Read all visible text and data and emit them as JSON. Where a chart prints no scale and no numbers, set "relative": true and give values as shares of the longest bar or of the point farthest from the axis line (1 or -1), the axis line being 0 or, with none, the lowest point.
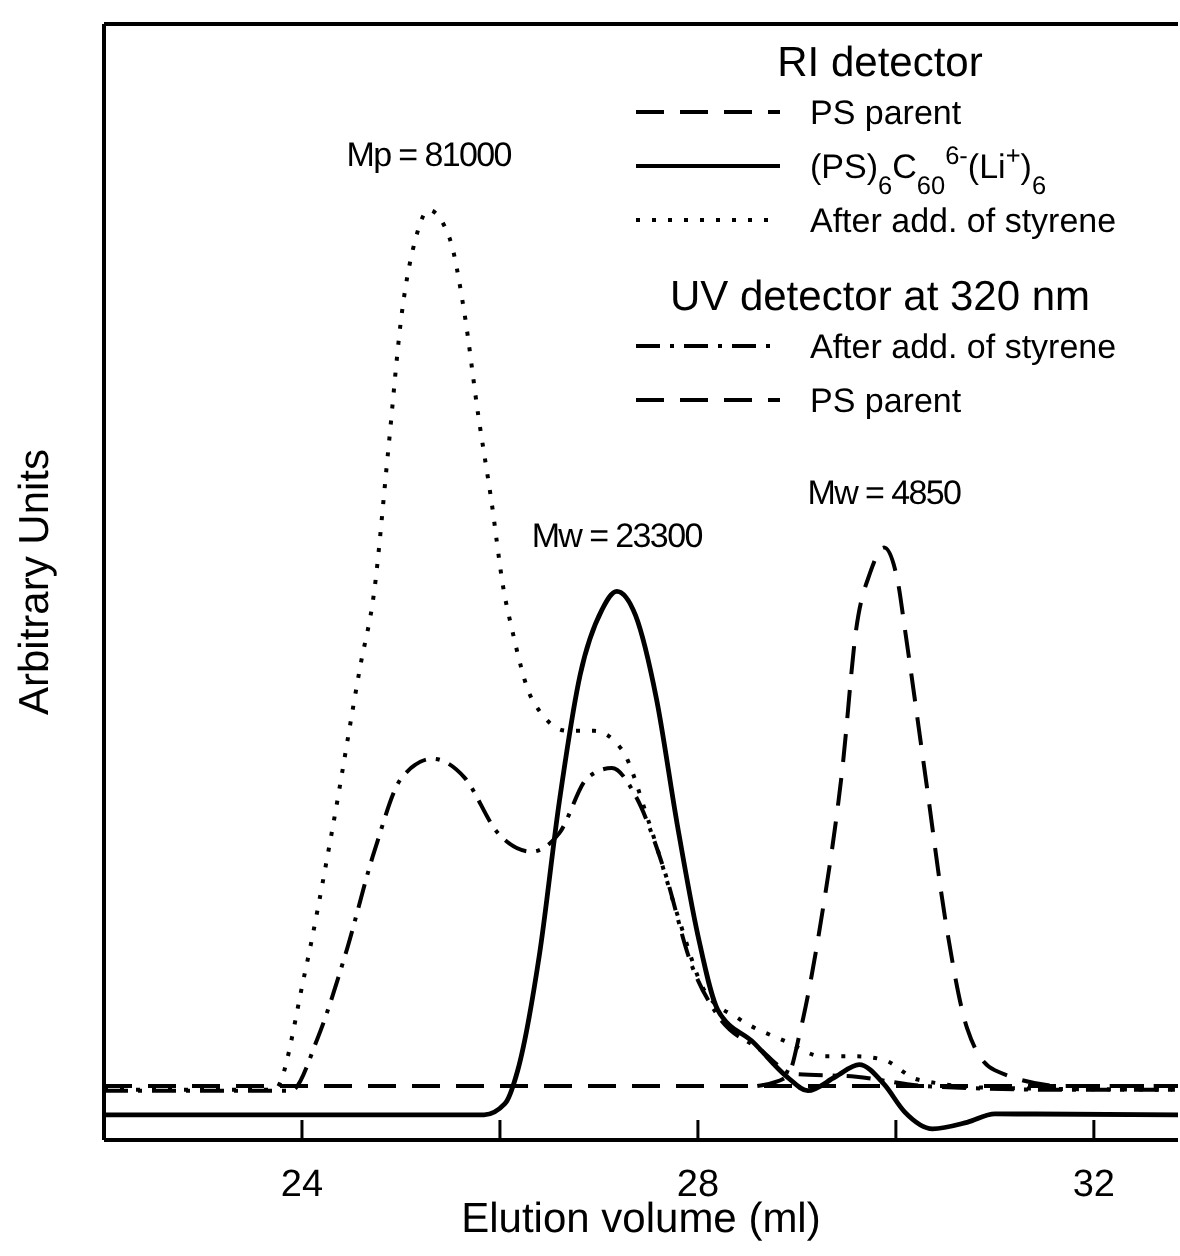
{
  "chart_data": {
    "type": "line",
    "relative": true,
    "xlabel": "Elution volume (ml)",
    "ylabel": "Arbitrary Units",
    "xlim": [
      22,
      32.85
    ],
    "xticks": [
      24,
      {
        "value": 26,
        "label": null
      },
      28,
      {
        "value": 30,
        "label": null
      },
      32
    ],
    "legend": "top right",
    "grid": false,
    "marker": "none",
    "annotations": [
      "RI detector",
      "UV detector at 320 nm",
      {
        "text": "Mp = 81000",
        "x": 25.28,
        "y": 1.0
      },
      {
        "text": "Mw = 23300",
        "x": 27.18,
        "y": 0.59
      },
      {
        "text": "Mw = 4850",
        "x": 29.88,
        "y": 0.637
      }
    ],
    "series": [
      {
        "name": "PS parent",
        "color": "#000000",
        "line_style": "dashed",
        "x": [
          28.6,
          28.9,
          29.04,
          29.25,
          29.46,
          29.6,
          29.74,
          29.88,
          30.02,
          30.09,
          30.3,
          30.51,
          30.72,
          31.0,
          31.7,
          32.85
        ],
        "values": [
          0.058,
          0.068,
          0.12,
          0.24,
          0.4,
          0.55,
          0.61,
          0.637,
          0.6,
          0.55,
          0.39,
          0.23,
          0.12,
          0.075,
          0.058,
          0.058
        ]
      },
      {
        "name": "(PS)$_{6}$C$_{60}$$^{6-}$(Li$^{+}$)$_{6}$",
        "color": "#000000",
        "line_style": "solid",
        "x": [
          22,
          25.84,
          26.05,
          26.18,
          26.4,
          26.6,
          26.81,
          27.03,
          27.18,
          27.37,
          27.58,
          27.79,
          28.0,
          28.2,
          28.56,
          28.9,
          29.11,
          29.39,
          29.63,
          29.88,
          30.09,
          30.37,
          30.72,
          31.0,
          32.85
        ],
        "values": [
          0.027,
          0.027,
          0.039,
          0.075,
          0.2,
          0.364,
          0.5,
          0.57,
          0.59,
          0.564,
          0.475,
          0.34,
          0.22,
          0.14,
          0.105,
          0.068,
          0.053,
          0.068,
          0.081,
          0.06,
          0.03,
          0.012,
          0.019,
          0.028,
          0.027
        ]
      },
      {
        "name": "After add. of styrene",
        "color": "#000000",
        "line_style": "dotted",
        "x": [
          22,
          23.72,
          24.03,
          24.3,
          24.59,
          24.73,
          24.87,
          25.01,
          25.15,
          25.28,
          25.49,
          25.64,
          25.78,
          25.91,
          26.04,
          26.12,
          26.32,
          26.68,
          26.95,
          27.23,
          27.51,
          27.8,
          28.07,
          28.42,
          28.91,
          29.25,
          29.6,
          29.88,
          30.22,
          30.99,
          32.85
        ],
        "values": [
          0.054,
          0.054,
          0.18,
          0.33,
          0.51,
          0.59,
          0.74,
          0.89,
          0.97,
          1.0,
          0.97,
          0.89,
          0.78,
          0.69,
          0.59,
          0.55,
          0.475,
          0.44,
          0.44,
          0.42,
          0.34,
          0.24,
          0.16,
          0.13,
          0.105,
          0.09,
          0.09,
          0.086,
          0.065,
          0.056,
          0.054
        ]
      },
      {
        "name": "After add. of styrene",
        "color": "#000000",
        "line_style": "dashdot",
        "x": [
          22,
          23.89,
          24.16,
          24.44,
          24.73,
          25.01,
          25.32,
          25.64,
          25.98,
          26.32,
          26.6,
          26.89,
          27.13,
          27.37,
          27.66,
          27.93,
          28.2,
          28.63,
          28.97,
          29.6,
          30.3,
          31.7,
          32.85
        ],
        "values": [
          0.053,
          0.053,
          0.11,
          0.2,
          0.31,
          0.39,
          0.41,
          0.39,
          0.33,
          0.31,
          0.33,
          0.39,
          0.4,
          0.37,
          0.29,
          0.19,
          0.134,
          0.097,
          0.071,
          0.068,
          0.058,
          0.054,
          0.054
        ]
      },
      {
        "name": "PS parent",
        "color": "#000000",
        "line_style": "dashed",
        "x": [
          22,
          32.85
        ],
        "values": [
          0.058,
          0.058
        ]
      }
    ]
  }
}
